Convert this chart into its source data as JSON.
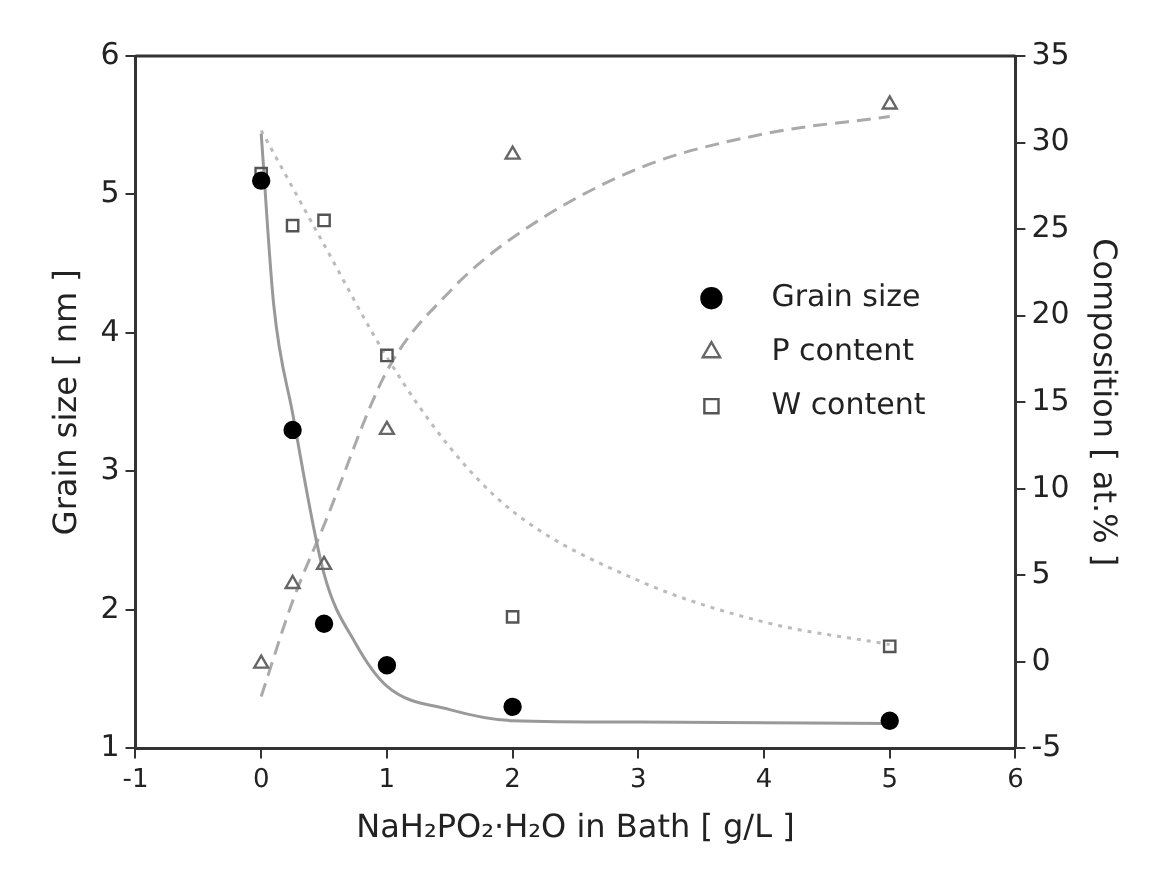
{
  "chart_data": {
    "type": "scatter",
    "xlabel": "NaH₂PO₂·H₂O in Bath [ g/L ]",
    "ylabel": "Grain size [ nm ]",
    "y2label": "Composition [ at.% ]",
    "xlim": [
      -1,
      6
    ],
    "xticks": [
      -1,
      0,
      1,
      2,
      3,
      4,
      5,
      6
    ],
    "ylim": [
      1,
      6
    ],
    "yticks": [
      1,
      2,
      3,
      4,
      5,
      6
    ],
    "y2lim": [
      -5,
      35
    ],
    "y2ticks": [
      -5,
      0,
      5,
      10,
      15,
      20,
      25,
      30,
      35
    ],
    "grid": false,
    "legend": "right",
    "series": [
      {
        "name": "Grain size",
        "marker": "circle",
        "color": "#000000",
        "x": [
          0,
          0.25,
          0.5,
          1,
          2,
          5
        ],
        "values": [
          5.1,
          3.3,
          1.9,
          1.6,
          1.3,
          1.2
        ]
      },
      {
        "name": "P content",
        "marker": "triangle",
        "color": "#666666",
        "axis": "y2",
        "x": [
          0,
          0.25,
          0.5,
          1,
          2,
          5
        ],
        "values": [
          -0.1,
          4.5,
          5.6,
          13.4,
          29.3,
          32.2
        ]
      },
      {
        "name": "W content",
        "marker": "square",
        "color": "#555555",
        "axis": "y2",
        "x": [
          0,
          0.25,
          0.5,
          1,
          2,
          5
        ],
        "values": [
          28.2,
          25.2,
          25.5,
          17.7,
          2.6,
          0.9
        ]
      },
      {
        "type": "line",
        "line_style": "solid",
        "marker": "none",
        "color": "#999999",
        "x": [
          0,
          0.1,
          0.25,
          0.5,
          0.75,
          1,
          1.5,
          2,
          3,
          5
        ],
        "values": [
          5.44,
          4.2,
          3.42,
          2.26,
          1.76,
          1.45,
          1.28,
          1.2,
          1.19,
          1.18
        ]
      },
      {
        "type": "line",
        "line_style": "dashed",
        "marker": "none",
        "color": "#aaaaaa",
        "axis": "y2",
        "x": [
          0,
          0.25,
          0.5,
          1,
          1.5,
          2,
          3,
          4,
          5
        ],
        "values": [
          -2,
          3.5,
          7.9,
          16.8,
          21.4,
          24.5,
          28.5,
          30.5,
          31.5
        ]
      },
      {
        "type": "line",
        "line_style": "dotted",
        "marker": "none",
        "color": "#bbbbbb",
        "axis": "y2",
        "x": [
          0,
          0.5,
          1,
          1.5,
          2,
          3,
          4,
          5
        ],
        "values": [
          30.7,
          24.1,
          17.6,
          12.4,
          8.7,
          4.7,
          2.3,
          1.0
        ]
      }
    ]
  }
}
